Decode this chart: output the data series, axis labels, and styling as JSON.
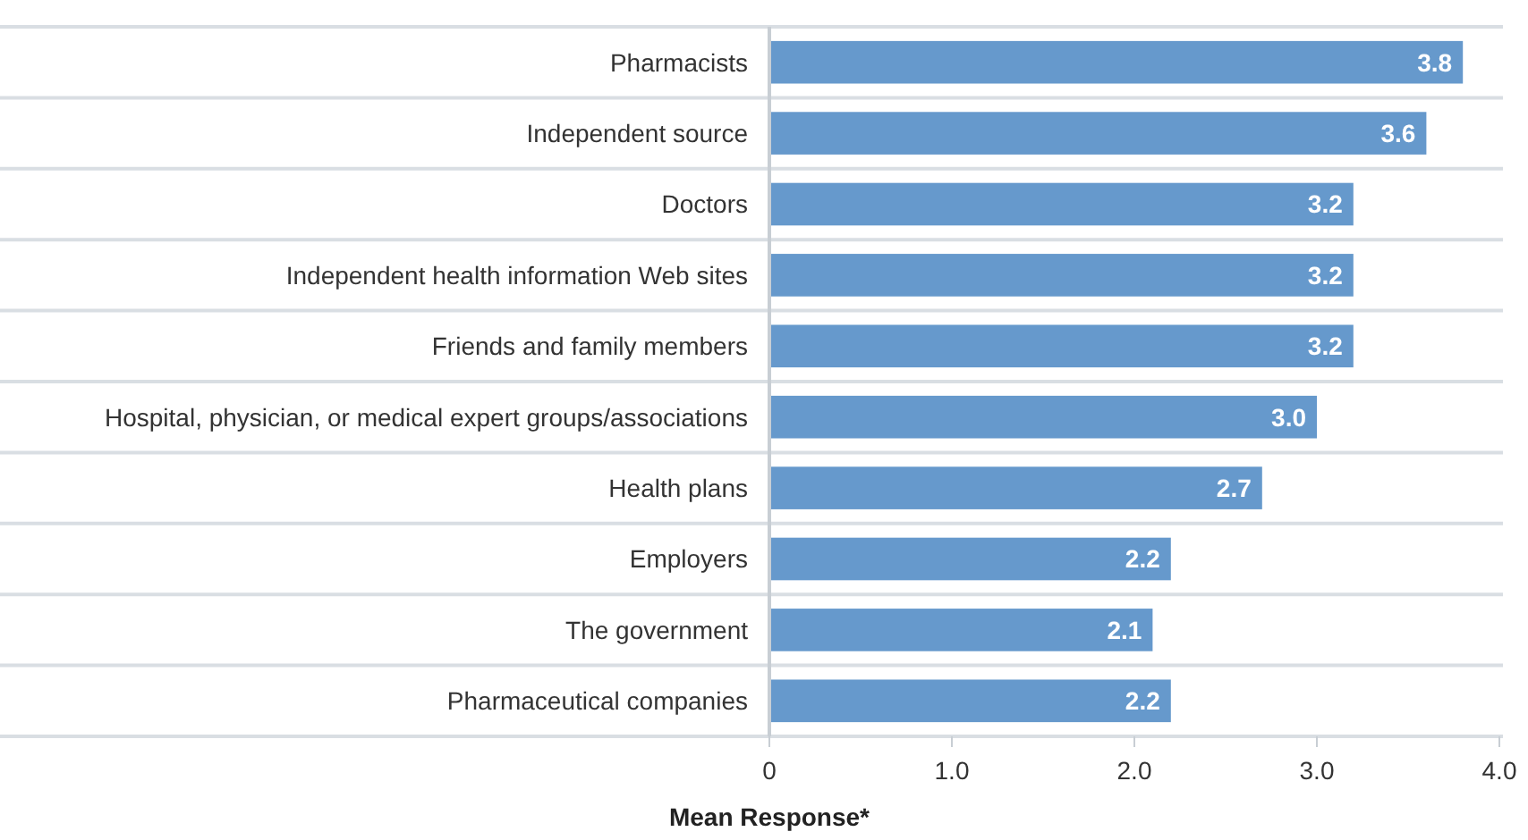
{
  "chart_data": {
    "type": "bar",
    "orientation": "horizontal",
    "xlabel": "Mean Response*",
    "categories": [
      "Pharmacists",
      "Independent source",
      "Doctors",
      "Independent health information Web sites",
      "Friends and family members",
      "Hospital, physician, or medical expert groups/associations",
      "Health plans",
      "Employers",
      "The government",
      "Pharmaceutical companies"
    ],
    "values": [
      3.8,
      3.6,
      3.2,
      3.2,
      3.2,
      3.0,
      2.7,
      2.2,
      2.1,
      2.2
    ],
    "value_labels": [
      "3.8",
      "3.6",
      "3.2",
      "3.2",
      "3.2",
      "3.0",
      "2.7",
      "2.2",
      "2.1",
      "2.2"
    ],
    "color": "#6699cc",
    "grid": "y",
    "xlim": [
      0,
      4
    ],
    "xticks": [
      0,
      {
        "value": 1,
        "label": "1.0"
      },
      {
        "value": 2,
        "label": "2.0"
      },
      {
        "value": 3,
        "label": "3.0"
      },
      {
        "value": 4,
        "label": "4.0"
      }
    ]
  }
}
